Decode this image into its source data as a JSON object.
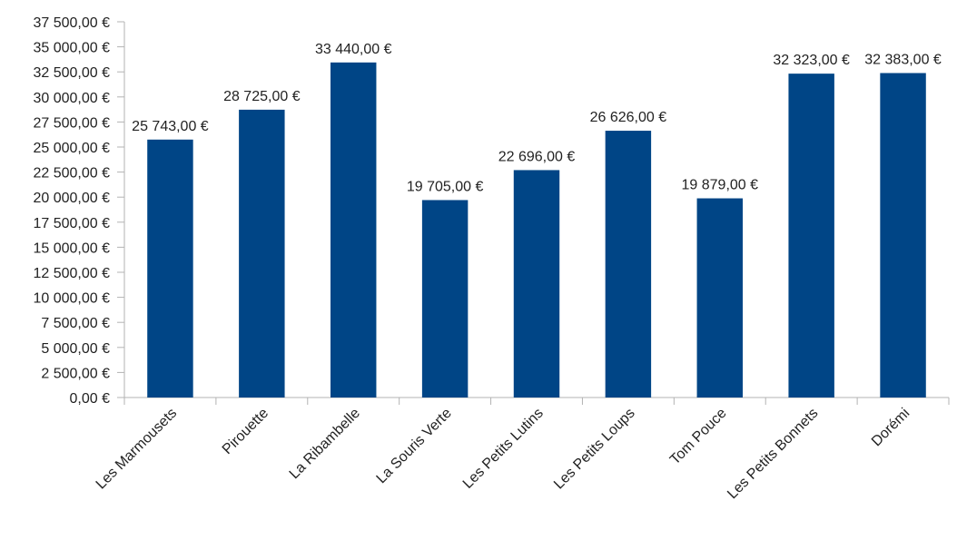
{
  "chart_data": {
    "type": "bar",
    "categories": [
      "Les Marmousets",
      "Pirouette",
      "La Ribambelle",
      "La Souris Verte",
      "Les Petits Lutins",
      "Les Petits Loups",
      "Tom Pouce",
      "Les Petits Bonnets",
      "Dorémi"
    ],
    "values": [
      25743,
      28725,
      33440,
      19705,
      22696,
      26626,
      19879,
      32323,
      32383
    ],
    "value_labels": [
      "25 743,00 €",
      "28 725,00 €",
      "33 440,00 €",
      "19 705,00 €",
      "22 696,00 €",
      "26 626,00 €",
      "19 879,00 €",
      "32 323,00 €",
      "32 383,00 €"
    ],
    "color": "#004586",
    "ylim": [
      0,
      37500
    ],
    "yticks": [
      {
        "value": 0,
        "label": "0,00 €"
      },
      {
        "value": 2500,
        "label": "2 500,00 €"
      },
      {
        "value": 5000,
        "label": "5 000,00 €"
      },
      {
        "value": 7500,
        "label": "7 500,00 €"
      },
      {
        "value": 10000,
        "label": "10 000,00 €"
      },
      {
        "value": 12500,
        "label": "12 500,00 €"
      },
      {
        "value": 15000,
        "label": "15 000,00 €"
      },
      {
        "value": 17500,
        "label": "17 500,00 €"
      },
      {
        "value": 20000,
        "label": "20 000,00 €"
      },
      {
        "value": 22500,
        "label": "22 500,00 €"
      },
      {
        "value": 25000,
        "label": "25 000,00 €"
      },
      {
        "value": 27500,
        "label": "27 500,00 €"
      },
      {
        "value": 30000,
        "label": "30 000,00 €"
      },
      {
        "value": 32500,
        "label": "32 500,00 €"
      },
      {
        "value": 35000,
        "label": "35 000,00 €"
      },
      {
        "value": 37500,
        "label": "37 500,00 €"
      }
    ],
    "grid": false
  }
}
